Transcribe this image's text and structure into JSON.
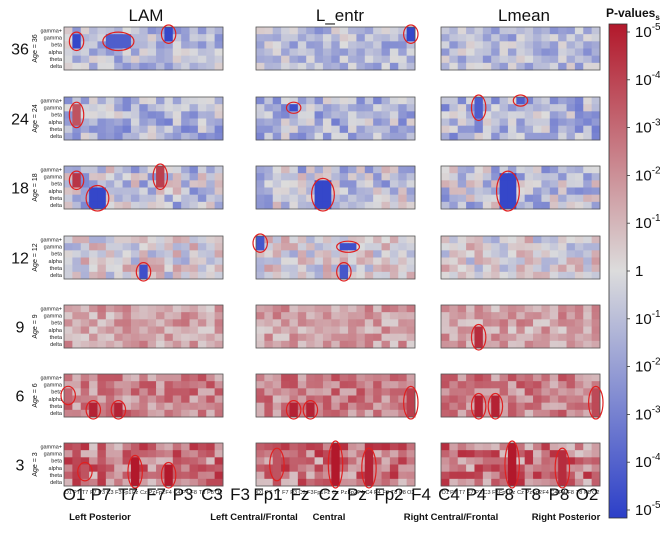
{
  "chart_data": {
    "type": "heatmap",
    "panel_titles": [
      "LAM",
      "L_entr",
      "Lmean"
    ],
    "rows": [
      {
        "age": "36",
        "label": "Age = 36",
        "base": 0.2,
        "amp": 0.3
      },
      {
        "age": "24",
        "label": "Age = 24",
        "base": 0.25,
        "amp": 0.35
      },
      {
        "age": "18",
        "label": "Age = 18",
        "base": 0.15,
        "amp": 0.4
      },
      {
        "age": "12",
        "label": "Age = 12",
        "base": 0.0,
        "amp": 0.35
      },
      {
        "age": "9",
        "label": "Age = 9",
        "base": -0.3,
        "amp": 0.25
      },
      {
        "age": "6",
        "label": "Age = 6",
        "base": -0.45,
        "amp": 0.3
      },
      {
        "age": "3",
        "label": "Age = 3",
        "base": -0.5,
        "amp": 0.4
      }
    ],
    "bands": [
      "gamma+",
      "gamma",
      "beta",
      "alpha",
      "theta",
      "delta"
    ],
    "electrodes": [
      "O1",
      "P7",
      "T7",
      "F7",
      "P3",
      "C3",
      "F3",
      "Fp1",
      "Fz",
      "Cz",
      "Pz",
      "Fp2",
      "F4",
      "C4",
      "P4",
      "F8",
      "T8",
      "P8",
      "O2"
    ],
    "electrode_ticks": [
      "O1",
      "P7",
      "T7",
      "F7",
      "P3",
      "C3",
      "F3",
      "Fp1",
      "Fz",
      "Cz",
      "Pz",
      "Fp2",
      "F4",
      "C4",
      "P4",
      "F8",
      "T8",
      "P8",
      "O2"
    ],
    "region_labels": [
      "Left Posterior",
      "Left Central/Frontal",
      "Central",
      "Right Central/Frontal",
      "Right Posterior"
    ],
    "significant_regions": [
      {
        "panel": 0,
        "row": 0,
        "e0": 1,
        "e1": 1,
        "b0": 1,
        "b1": 2,
        "strength": 0.95
      },
      {
        "panel": 0,
        "row": 0,
        "e0": 5,
        "e1": 7,
        "b0": 1,
        "b1": 2,
        "strength": 0.8
      },
      {
        "panel": 0,
        "row": 0,
        "e0": 12,
        "e1": 12,
        "b0": 0,
        "b1": 1,
        "strength": 0.95
      },
      {
        "panel": 1,
        "row": 0,
        "e0": 18,
        "e1": 18,
        "b0": 0,
        "b1": 1,
        "strength": 0.95
      },
      {
        "panel": 0,
        "row": 1,
        "e0": 1,
        "e1": 1,
        "b0": 1,
        "b1": 3,
        "strength": -0.7
      },
      {
        "panel": 1,
        "row": 1,
        "e0": 4,
        "e1": 4,
        "b0": 1,
        "b1": 1,
        "strength": 0.9
      },
      {
        "panel": 2,
        "row": 1,
        "e0": 4,
        "e1": 4,
        "b0": 0,
        "b1": 2,
        "strength": 0.8
      },
      {
        "panel": 2,
        "row": 1,
        "e0": 9,
        "e1": 9,
        "b0": 0,
        "b1": 0,
        "strength": 0.8
      },
      {
        "panel": 0,
        "row": 2,
        "e0": 1,
        "e1": 1,
        "b0": 1,
        "b1": 2,
        "strength": -0.85
      },
      {
        "panel": 0,
        "row": 2,
        "e0": 3,
        "e1": 4,
        "b0": 3,
        "b1": 5,
        "strength": 0.95
      },
      {
        "panel": 0,
        "row": 2,
        "e0": 11,
        "e1": 11,
        "b0": 0,
        "b1": 2,
        "strength": -0.8
      },
      {
        "panel": 1,
        "row": 2,
        "e0": 7,
        "e1": 8,
        "b0": 2,
        "b1": 5,
        "strength": 0.95
      },
      {
        "panel": 2,
        "row": 2,
        "e0": 7,
        "e1": 8,
        "b0": 1,
        "b1": 5,
        "strength": 0.95
      },
      {
        "panel": 0,
        "row": 3,
        "e0": 9,
        "e1": 9,
        "b0": 4,
        "b1": 5,
        "strength": 0.9
      },
      {
        "panel": 1,
        "row": 3,
        "e0": 0,
        "e1": 0,
        "b0": 0,
        "b1": 1,
        "strength": 0.85
      },
      {
        "panel": 1,
        "row": 3,
        "e0": 10,
        "e1": 11,
        "b0": 1,
        "b1": 1,
        "strength": 0.9
      },
      {
        "panel": 1,
        "row": 3,
        "e0": 10,
        "e1": 10,
        "b0": 4,
        "b1": 5,
        "strength": 0.85
      },
      {
        "panel": 2,
        "row": 4,
        "e0": 4,
        "e1": 4,
        "b0": 3,
        "b1": 5,
        "strength": -0.9
      },
      {
        "panel": 0,
        "row": 5,
        "e0": 0,
        "e1": 0,
        "b0": 2,
        "b1": 3,
        "strength": -0.6
      },
      {
        "panel": 0,
        "row": 5,
        "e0": 3,
        "e1": 3,
        "b0": 4,
        "b1": 5,
        "strength": -0.95
      },
      {
        "panel": 0,
        "row": 5,
        "e0": 6,
        "e1": 6,
        "b0": 4,
        "b1": 5,
        "strength": -0.95
      },
      {
        "panel": 1,
        "row": 5,
        "e0": 4,
        "e1": 4,
        "b0": 4,
        "b1": 5,
        "strength": -0.95
      },
      {
        "panel": 1,
        "row": 5,
        "e0": 6,
        "e1": 6,
        "b0": 4,
        "b1": 5,
        "strength": -0.95
      },
      {
        "panel": 1,
        "row": 5,
        "e0": 18,
        "e1": 18,
        "b0": 2,
        "b1": 5,
        "strength": -0.8
      },
      {
        "panel": 2,
        "row": 5,
        "e0": 4,
        "e1": 4,
        "b0": 3,
        "b1": 5,
        "strength": -0.95
      },
      {
        "panel": 2,
        "row": 5,
        "e0": 6,
        "e1": 6,
        "b0": 3,
        "b1": 5,
        "strength": -0.95
      },
      {
        "panel": 2,
        "row": 5,
        "e0": 18,
        "e1": 18,
        "b0": 2,
        "b1": 5,
        "strength": -0.75
      },
      {
        "panel": 0,
        "row": 6,
        "e0": 2,
        "e1": 2,
        "b0": 3,
        "b1": 4,
        "strength": -0.7
      },
      {
        "panel": 0,
        "row": 6,
        "e0": 8,
        "e1": 8,
        "b0": 2,
        "b1": 5,
        "strength": -1.0
      },
      {
        "panel": 0,
        "row": 6,
        "e0": 12,
        "e1": 12,
        "b0": 3,
        "b1": 5,
        "strength": -1.0
      },
      {
        "panel": 1,
        "row": 6,
        "e0": 2,
        "e1": 2,
        "b0": 1,
        "b1": 4,
        "strength": -0.7
      },
      {
        "panel": 1,
        "row": 6,
        "e0": 9,
        "e1": 9,
        "b0": 0,
        "b1": 5,
        "strength": -1.0
      },
      {
        "panel": 1,
        "row": 6,
        "e0": 13,
        "e1": 13,
        "b0": 1,
        "b1": 5,
        "strength": -0.95
      },
      {
        "panel": 2,
        "row": 6,
        "e0": 8,
        "e1": 8,
        "b0": 0,
        "b1": 5,
        "strength": -1.0
      },
      {
        "panel": 2,
        "row": 6,
        "e0": 14,
        "e1": 14,
        "b0": 1,
        "b1": 5,
        "strength": -0.9
      }
    ],
    "colorbar": {
      "title": "P-values",
      "title_suffix": "s",
      "ticks": [
        {
          "base": "10",
          "exp": "-5"
        },
        {
          "base": "10",
          "exp": "-4"
        },
        {
          "base": "10",
          "exp": "-3"
        },
        {
          "base": "10",
          "exp": "-2"
        },
        {
          "base": "10",
          "exp": "-1"
        },
        {
          "base": "1",
          "exp": ""
        },
        {
          "base": "10",
          "exp": "-1"
        },
        {
          "base": "10",
          "exp": "-2"
        },
        {
          "base": "10",
          "exp": "-3"
        },
        {
          "base": "10",
          "exp": "-4"
        },
        {
          "base": "10",
          "exp": "-5"
        }
      ],
      "top_color": "#b2182b",
      "mid_color": "#dcdcdc",
      "bottom_color": "#2c3fc8"
    },
    "ellipse_color": "#e02020",
    "scale": "log p-value, red = increase, blue = decrease"
  }
}
